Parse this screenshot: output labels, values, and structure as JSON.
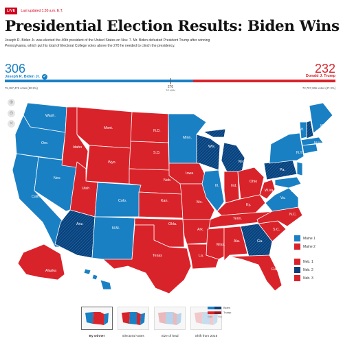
{
  "header": {
    "live": "LIVE",
    "updated": "Last updated 1:30 a.m. E.T.",
    "title": "Presidential Election Results: Biden Wins",
    "dek": "Joseph R. Biden Jr. was elected the 46th president of the United States on Nov. 7. Mr. Biden defeated President Trump after winning Pennsylvania, which put his total of Electoral College votes above the 270 he needed to clinch the presidency."
  },
  "tally": {
    "biden_ev": "306",
    "trump_ev": "232",
    "biden_name": "Joseph R. Biden Jr.",
    "trump_name": "Donald J. Trump",
    "threshold": "270",
    "threshold_label": "TO WIN",
    "biden_votes": "75,157,478 votes (50.9%)",
    "trump_votes": "72,707,266 votes (47.3%)",
    "biden_share": 0.569
  },
  "colors": {
    "dem": "#1a80c4",
    "gop": "#d9232a",
    "dem_flip": "#0d3f78",
    "gop_flip": "#8e1a22"
  },
  "zoom_controls": [
    "zoom-in-icon",
    "zoom-out-icon",
    "close-icon"
  ],
  "map": {
    "labels": [
      "Wash.",
      "Ore.",
      "Calif.",
      "Nev.",
      "Idaho",
      "Mont.",
      "Wyo.",
      "Utah",
      "Ariz.",
      "Colo.",
      "N.M.",
      "N.D.",
      "S.D.",
      "Neb.",
      "Kan.",
      "Okla.",
      "Texas",
      "Minn.",
      "Iowa",
      "Mo.",
      "Ark.",
      "La.",
      "Wis.",
      "Ill.",
      "Mich.",
      "Ind.",
      "Ohio",
      "Ky.",
      "Tenn.",
      "Miss.",
      "Ala.",
      "Ga.",
      "Fla.",
      "S.C.",
      "N.C.",
      "Va.",
      "W.Va.",
      "Pa.",
      "N.Y.",
      "Vt.",
      "N.H.",
      "Maine",
      "Mass.",
      "Conn.",
      "R.I.",
      "N.J.",
      "Del.",
      "Md.",
      "Alaska",
      "Hawaii"
    ]
  },
  "district_legend": [
    {
      "label": "Maine 1",
      "party": "dem"
    },
    {
      "label": "Maine 2",
      "party": "gop"
    },
    {
      "label": "Neb. 1",
      "party": "gop"
    },
    {
      "label": "Neb. 2",
      "party": "dem_flip"
    },
    {
      "label": "Neb. 3",
      "party": "gop"
    }
  ],
  "view_tabs": [
    {
      "label": "By winner",
      "active": true
    },
    {
      "label": "Electoral votes",
      "active": false
    },
    {
      "label": "Size of lead",
      "active": false
    },
    {
      "label": "Shift from 2016",
      "active": false
    }
  ],
  "win_key": {
    "dem": "Biden",
    "gop": "Trump",
    "win": "Win",
    "flip": "Flip"
  }
}
